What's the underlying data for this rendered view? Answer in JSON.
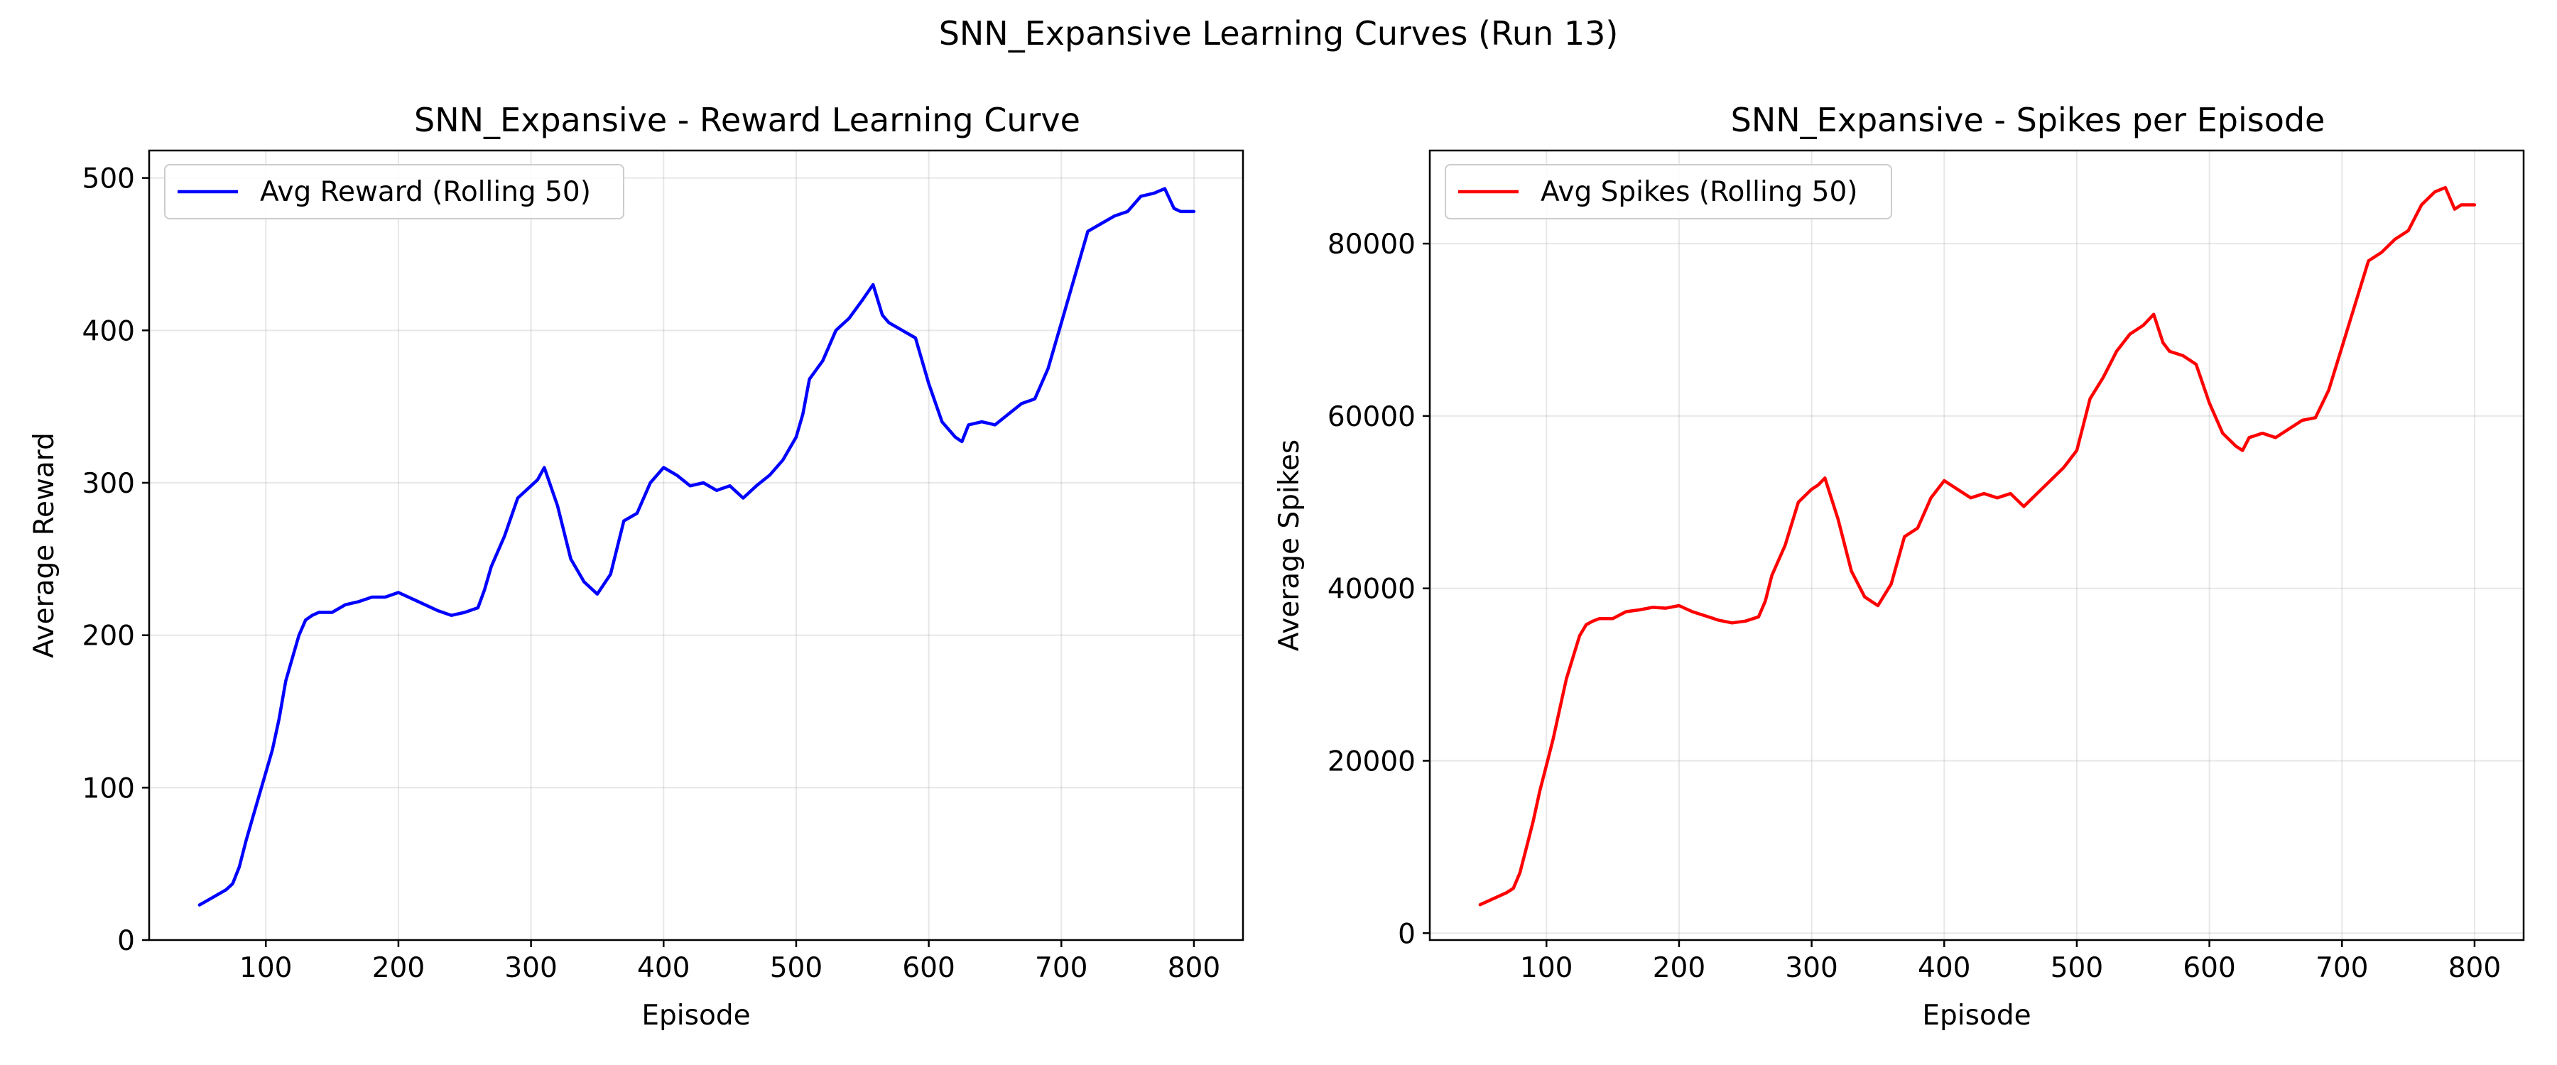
{
  "figure": {
    "suptitle": "SNN_Expansive Learning Curves (Run 13)"
  },
  "chart_data": [
    {
      "type": "line",
      "title": "SNN_Expansive - Reward Learning Curve",
      "xlabel": "Episode",
      "ylabel": "Average Reward",
      "xlim": [
        12,
        837
      ],
      "ylim": [
        0,
        518
      ],
      "xticks": [
        100,
        200,
        300,
        400,
        500,
        600,
        700,
        800
      ],
      "yticks": [
        0,
        100,
        200,
        300,
        400,
        500
      ],
      "xtick_labels": [
        "100",
        "200",
        "300",
        "400",
        "500",
        "600",
        "700",
        "800"
      ],
      "ytick_labels": [
        "0",
        "100",
        "200",
        "300",
        "400",
        "500"
      ],
      "grid": true,
      "legend_position": "top-left",
      "series": [
        {
          "name": "Avg Reward (Rolling 50)",
          "color": "#0000ff",
          "x": [
            50,
            60,
            70,
            75,
            80,
            85,
            90,
            95,
            100,
            105,
            110,
            115,
            120,
            125,
            130,
            135,
            140,
            150,
            160,
            170,
            180,
            190,
            200,
            210,
            220,
            230,
            240,
            250,
            260,
            265,
            270,
            280,
            290,
            300,
            305,
            310,
            320,
            330,
            340,
            350,
            360,
            370,
            380,
            390,
            400,
            410,
            420,
            430,
            440,
            450,
            460,
            470,
            480,
            490,
            500,
            505,
            510,
            520,
            530,
            540,
            550,
            558,
            565,
            570,
            580,
            590,
            600,
            610,
            620,
            625,
            630,
            640,
            650,
            660,
            670,
            680,
            690,
            700,
            710,
            720,
            730,
            740,
            750,
            760,
            770,
            778,
            785,
            790,
            800
          ],
          "y": [
            23,
            28,
            33,
            37,
            48,
            65,
            80,
            95,
            110,
            125,
            145,
            170,
            185,
            200,
            210,
            213,
            215,
            215,
            220,
            222,
            225,
            225,
            228,
            224,
            220,
            216,
            213,
            215,
            218,
            230,
            245,
            265,
            290,
            298,
            302,
            310,
            285,
            250,
            235,
            227,
            240,
            275,
            280,
            300,
            310,
            305,
            298,
            300,
            295,
            298,
            290,
            298,
            305,
            315,
            330,
            345,
            368,
            380,
            400,
            408,
            420,
            430,
            410,
            405,
            400,
            395,
            365,
            340,
            330,
            327,
            338,
            340,
            338,
            345,
            352,
            355,
            375,
            405,
            435,
            465,
            470,
            475,
            478,
            488,
            490,
            493,
            480,
            478,
            478
          ]
        }
      ]
    },
    {
      "type": "line",
      "title": "SNN_Expansive - Spikes per Episode",
      "xlabel": "Episode",
      "ylabel": "Average Spikes",
      "xlim": [
        12,
        837
      ],
      "ylim": [
        -800,
        90800
      ],
      "xticks": [
        100,
        200,
        300,
        400,
        500,
        600,
        700,
        800
      ],
      "yticks": [
        0,
        20000,
        40000,
        60000,
        80000
      ],
      "xtick_labels": [
        "100",
        "200",
        "300",
        "400",
        "500",
        "600",
        "700",
        "800"
      ],
      "ytick_labels": [
        "0",
        "20000",
        "40000",
        "60000",
        "80000"
      ],
      "grid": true,
      "legend_position": "top-left",
      "series": [
        {
          "name": "Avg Spikes (Rolling 50)",
          "color": "#ff0000",
          "x": [
            50,
            60,
            70,
            75,
            80,
            85,
            90,
            95,
            100,
            105,
            110,
            115,
            120,
            125,
            130,
            135,
            140,
            150,
            160,
            170,
            180,
            190,
            200,
            210,
            220,
            230,
            240,
            250,
            260,
            265,
            270,
            280,
            290,
            300,
            305,
            310,
            320,
            330,
            340,
            350,
            360,
            370,
            380,
            390,
            400,
            410,
            420,
            430,
            440,
            450,
            460,
            470,
            480,
            490,
            500,
            505,
            510,
            520,
            530,
            540,
            550,
            558,
            565,
            570,
            580,
            590,
            600,
            610,
            620,
            625,
            630,
            640,
            650,
            660,
            670,
            680,
            690,
            700,
            710,
            720,
            730,
            740,
            750,
            760,
            770,
            778,
            785,
            790,
            800
          ],
          "y": [
            3300,
            4000,
            4700,
            5200,
            7000,
            10000,
            13000,
            16500,
            19500,
            22500,
            26000,
            29500,
            32000,
            34500,
            35800,
            36200,
            36500,
            36500,
            37300,
            37500,
            37800,
            37700,
            38000,
            37300,
            36800,
            36300,
            36000,
            36200,
            36700,
            38500,
            41500,
            45000,
            50000,
            51500,
            52000,
            52800,
            48000,
            42000,
            39000,
            38000,
            40500,
            46000,
            47000,
            50500,
            52500,
            51500,
            50500,
            51000,
            50500,
            51000,
            49500,
            51000,
            52500,
            54000,
            56000,
            59000,
            62000,
            64500,
            67500,
            69500,
            70500,
            71800,
            68500,
            67500,
            67000,
            66000,
            61500,
            58000,
            56500,
            56000,
            57500,
            58000,
            57500,
            58500,
            59500,
            59800,
            63000,
            68000,
            73000,
            78000,
            79000,
            80500,
            81500,
            84500,
            86000,
            86500,
            84000,
            84500,
            84500
          ]
        }
      ]
    }
  ]
}
